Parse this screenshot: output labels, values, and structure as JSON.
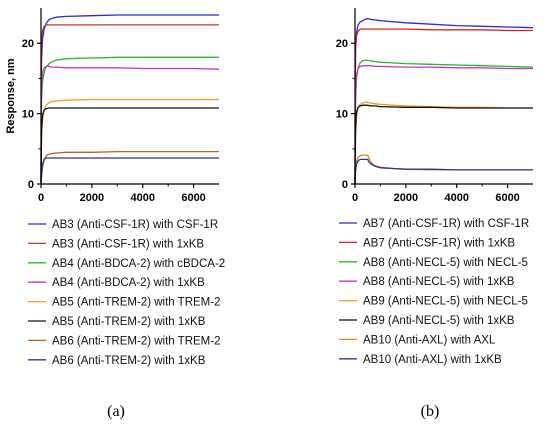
{
  "chart_data": [
    {
      "type": "line",
      "panel_label": "(a)",
      "ylabel": "Response, nm",
      "xlim": [
        0,
        7000
      ],
      "ylim": [
        0,
        25
      ],
      "xticks": [
        "0",
        "2000",
        "4000",
        "6000"
      ],
      "yticks": [
        "0",
        "10",
        "20"
      ],
      "legend_position": "below",
      "series": [
        {
          "name": "AB3 (Anti-CSF-1R) with CSF-1R",
          "color": "#2b2bd6",
          "x": [
            0,
            20,
            60,
            120,
            200,
            300,
            400,
            600,
            1000,
            2000,
            3000,
            4000,
            5000,
            6000,
            7000
          ],
          "y": [
            0,
            17.5,
            20.5,
            22,
            22.8,
            23.3,
            23.5,
            23.7,
            23.8,
            23.9,
            24.0,
            24.0,
            24.0,
            24.0,
            24.0
          ]
        },
        {
          "name": "AB3 (Anti-CSF-1R) with 1xKB",
          "color": "#c0392b",
          "x": [
            0,
            20,
            60,
            120,
            200,
            300,
            400,
            600,
            1000,
            2000,
            3000,
            4000,
            5000,
            6000,
            7000
          ],
          "y": [
            0,
            20.0,
            21.8,
            22.4,
            22.6,
            22.6,
            22.6,
            22.6,
            22.6,
            22.6,
            22.6,
            22.6,
            22.6,
            22.6,
            22.6
          ]
        },
        {
          "name": "AB4 (Anti-BDCA-2) with cBDCA-2",
          "color": "#22bb22",
          "x": [
            0,
            20,
            60,
            120,
            200,
            300,
            400,
            600,
            1000,
            2000,
            3000,
            4000,
            5000,
            6000,
            7000
          ],
          "y": [
            0,
            12.0,
            14.5,
            15.8,
            16.6,
            17.0,
            17.3,
            17.6,
            17.8,
            17.9,
            18.0,
            18.0,
            18.0,
            18.0,
            18.0
          ]
        },
        {
          "name": "AB4 (Anti-BDCA-2) with 1xKB",
          "color": "#cc33cc",
          "x": [
            0,
            20,
            60,
            120,
            200,
            300,
            400,
            600,
            1000,
            2000,
            3000,
            4000,
            5000,
            6000,
            7000
          ],
          "y": [
            0,
            13.5,
            15.8,
            16.5,
            16.7,
            16.7,
            16.6,
            16.6,
            16.5,
            16.5,
            16.5,
            16.4,
            16.4,
            16.4,
            16.3
          ]
        },
        {
          "name": "AB5 (Anti-TREM-2) with TREM-2",
          "color": "#f0a020",
          "x": [
            0,
            20,
            60,
            120,
            200,
            300,
            400,
            600,
            1000,
            2000,
            3000,
            4000,
            5000,
            6000,
            7000
          ],
          "y": [
            0,
            6.5,
            9.0,
            10.5,
            11.2,
            11.5,
            11.7,
            11.8,
            11.9,
            12.0,
            12.0,
            12.0,
            12.0,
            12.0,
            12.0
          ]
        },
        {
          "name": "AB5 (Anti-TREM-2) with 1xKB",
          "color": "#111111",
          "x": [
            0,
            20,
            60,
            120,
            200,
            300,
            400,
            600,
            1000,
            2000,
            3000,
            4000,
            5000,
            6000,
            7000
          ],
          "y": [
            0,
            7.5,
            9.8,
            10.5,
            10.7,
            10.8,
            10.8,
            10.8,
            10.8,
            10.8,
            10.8,
            10.8,
            10.8,
            10.8,
            10.8
          ]
        },
        {
          "name": "AB6 (Anti-TREM-2) with TREM-2",
          "color": "#b8651c",
          "x": [
            0,
            20,
            60,
            120,
            200,
            300,
            400,
            600,
            1000,
            2000,
            3000,
            4000,
            5000,
            6000,
            7000
          ],
          "y": [
            0,
            1.0,
            2.4,
            3.4,
            4.0,
            4.2,
            4.3,
            4.4,
            4.5,
            4.5,
            4.6,
            4.6,
            4.6,
            4.6,
            4.6
          ]
        },
        {
          "name": "AB6 (Anti-TREM-2) with 1xKB",
          "color": "#33338a",
          "x": [
            0,
            20,
            60,
            120,
            200,
            300,
            400,
            600,
            1000,
            2000,
            3000,
            4000,
            5000,
            6000,
            7000
          ],
          "y": [
            0,
            1.2,
            2.8,
            3.5,
            3.7,
            3.7,
            3.7,
            3.7,
            3.7,
            3.7,
            3.7,
            3.7,
            3.7,
            3.7,
            3.7
          ]
        }
      ]
    },
    {
      "type": "line",
      "panel_label": "(b)",
      "xlim": [
        0,
        7000
      ],
      "ylim": [
        0,
        25
      ],
      "xticks": [
        "0",
        "2000",
        "4000",
        "6000"
      ],
      "yticks": [
        "0",
        "10",
        "20"
      ],
      "legend_position": "below",
      "series": [
        {
          "name": "AB7 (Anti-CSF-1R) with CSF-1R",
          "color": "#2b2bd6",
          "x": [
            0,
            20,
            60,
            120,
            200,
            300,
            400,
            500,
            600,
            800,
            1000,
            2000,
            3000,
            4000,
            5000,
            6000,
            7000
          ],
          "y": [
            0,
            19.0,
            21.5,
            22.6,
            23.0,
            23.2,
            23.4,
            23.5,
            23.4,
            23.3,
            23.2,
            22.9,
            22.7,
            22.5,
            22.4,
            22.3,
            22.2
          ]
        },
        {
          "name": "AB7 (Anti-CSF-1R) with 1xKB",
          "color": "#e02020",
          "x": [
            0,
            20,
            60,
            120,
            200,
            300,
            400,
            500,
            600,
            800,
            1000,
            2000,
            3000,
            4000,
            5000,
            6000,
            7000
          ],
          "y": [
            0,
            19.0,
            21.0,
            21.7,
            22.0,
            22.0,
            22.0,
            22.0,
            22.0,
            22.0,
            22.0,
            22.0,
            21.9,
            21.9,
            21.9,
            21.8,
            21.8
          ]
        },
        {
          "name": "AB8 (Anti-NECL-5) with NECL-5",
          "color": "#22bb22",
          "x": [
            0,
            20,
            60,
            120,
            200,
            300,
            400,
            500,
            600,
            800,
            1000,
            2000,
            3000,
            4000,
            5000,
            6000,
            7000
          ],
          "y": [
            0,
            11.5,
            15.0,
            16.5,
            17.2,
            17.5,
            17.6,
            17.6,
            17.5,
            17.4,
            17.3,
            17.1,
            17.0,
            16.9,
            16.8,
            16.7,
            16.6
          ]
        },
        {
          "name": "AB8 (Anti-NECL-5) with 1xKB",
          "color": "#cc33cc",
          "x": [
            0,
            20,
            60,
            120,
            200,
            300,
            400,
            500,
            600,
            800,
            1000,
            2000,
            3000,
            4000,
            5000,
            6000,
            7000
          ],
          "y": [
            0,
            12.5,
            15.5,
            16.4,
            16.7,
            16.8,
            16.8,
            16.8,
            16.8,
            16.7,
            16.7,
            16.6,
            16.6,
            16.5,
            16.5,
            16.4,
            16.4
          ]
        },
        {
          "name": "AB9 (Anti-NECL-5) with NECL-5",
          "color": "#f0a020",
          "x": [
            0,
            20,
            60,
            120,
            200,
            300,
            400,
            500,
            600,
            800,
            1000,
            2000,
            3000,
            4000,
            5000,
            6000,
            7000
          ],
          "y": [
            0,
            6.5,
            9.5,
            10.8,
            11.3,
            11.5,
            11.6,
            11.6,
            11.5,
            11.4,
            11.3,
            11.1,
            11.0,
            10.9,
            10.9,
            10.8,
            10.8
          ]
        },
        {
          "name": "AB9 (Anti-NECL-5) with 1xKB",
          "color": "#111111",
          "x": [
            0,
            20,
            60,
            120,
            200,
            300,
            400,
            500,
            600,
            800,
            1000,
            2000,
            3000,
            4000,
            5000,
            6000,
            7000
          ],
          "y": [
            0,
            7.5,
            10.2,
            10.9,
            11.1,
            11.2,
            11.2,
            11.2,
            11.1,
            11.1,
            11.0,
            10.9,
            10.9,
            10.8,
            10.8,
            10.8,
            10.8
          ]
        },
        {
          "name": "AB10 (Anti-AXL) with AXL",
          "color": "#d98a1a",
          "x": [
            0,
            20,
            60,
            120,
            200,
            300,
            400,
            500,
            550,
            650,
            800,
            1000,
            1500,
            2000,
            3000,
            4000,
            5000,
            6000,
            7000
          ],
          "y": [
            0,
            2.0,
            3.2,
            3.8,
            4.0,
            4.1,
            4.1,
            4.1,
            3.6,
            3.0,
            2.6,
            2.4,
            2.2,
            2.1,
            2.0,
            2.0,
            2.0,
            2.0,
            2.0
          ]
        },
        {
          "name": "AB10 (Anti-AXL) with 1xKB",
          "color": "#33338a",
          "x": [
            0,
            20,
            60,
            120,
            200,
            300,
            400,
            500,
            550,
            650,
            800,
            1000,
            1500,
            2000,
            3000,
            4000,
            5000,
            6000,
            7000
          ],
          "y": [
            0,
            1.8,
            2.8,
            3.3,
            3.5,
            3.5,
            3.5,
            3.5,
            3.1,
            2.8,
            2.5,
            2.3,
            2.2,
            2.1,
            2.1,
            2.0,
            2.0,
            2.0,
            2.0
          ]
        }
      ]
    }
  ]
}
